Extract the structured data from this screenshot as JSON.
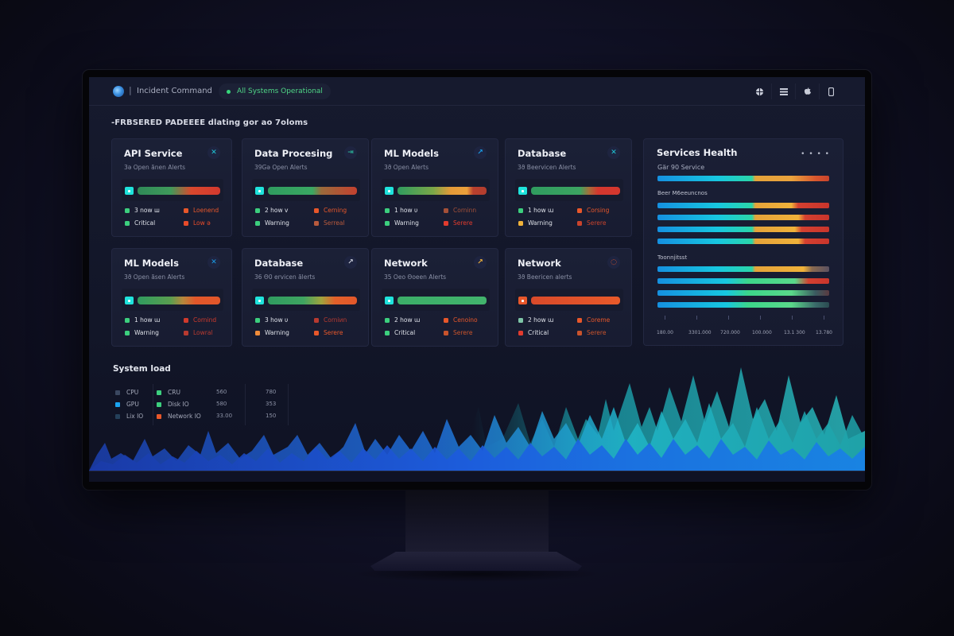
{
  "app": {
    "title": "Incident Command",
    "status": "All Systems Operational",
    "status_color": "#37d67a",
    "accent": "#1fe3dc"
  },
  "toolbar": {
    "icons": [
      "globe-icon",
      "menu-icon",
      "apple-icon",
      "phone-icon"
    ]
  },
  "subtitle": "-FRBSERED PADEEEE dlating gor ao 7oloms",
  "cards": [
    {
      "title": "API Service",
      "sub": "3ə Open ãnen Alerts",
      "icon": "✕",
      "icon_color": "#1fc9d8",
      "legend": [
        "3 now ш",
        "Critical",
        "Loenend",
        "Low ə"
      ],
      "colors": [
        "#3ccf7e",
        "#3ccf7e",
        "#e8572a",
        "#e84b2a"
      ],
      "bar": "linear-gradient(90deg,#2f8a58 0%,#3f9a5a 40%,#d9482d 65%,#d2392e 100%)"
    },
    {
      "title": "Data Procesing",
      "sub": "39Gə Open Alerts",
      "icon": "⇥",
      "icon_color": "#2aa58f",
      "legend": [
        "2 how v",
        "Warning",
        "Cerning",
        "Serreal"
      ],
      "colors": [
        "#3ccf7e",
        "#3ccf7e",
        "#e8572a",
        "#b85a3d"
      ],
      "bar": "linear-gradient(90deg,#2f9c5f 0%,#3aa862 50%,#9b6a3b 60%,#c3412f 100%)"
    },
    {
      "title": "ML Models",
      "sub": "3ϑ Open Alerts",
      "icon": "↗",
      "icon_color": "#1a9ee8",
      "legend": [
        "1 how υ",
        "Warning",
        "Corninn",
        "Serere"
      ],
      "colors": [
        "#3ccf7e",
        "#3ccf7e",
        "#a45038",
        "#e23b2e"
      ],
      "bar": "linear-gradient(90deg,#2f9c5f 0%,#7aa748 40%,#e59a38 60%,#eba03b 78%,#b8402e 85%,#b23d2e 100%)"
    },
    {
      "title": "Database",
      "sub": "3ϑ Beervicen Alerts",
      "icon": "✕",
      "icon_color": "#1fc9d8",
      "legend": [
        "1 how ɯ",
        "Warning",
        "Corsing",
        "Serere"
      ],
      "colors": [
        "#3ccf7e",
        "#f0b23a",
        "#e8572a",
        "#c9432c"
      ],
      "bar": "linear-gradient(90deg,#2f9c5f 0%,#3ca461 55%,#a4703a 65%,#d4372e 75%,#d4372e 100%)"
    },
    {
      "title": "ML Models",
      "sub": "3ϑ Open ãsen Alerts",
      "icon": "✕",
      "icon_color": "#1a9ee8",
      "legend": [
        "1 how ɯ",
        "Warning",
        "Cornind",
        "Lowral"
      ],
      "colors": [
        "#3ccf7e",
        "#3ccf7e",
        "#d13a2c",
        "#b83a30"
      ],
      "bar": "linear-gradient(90deg,#2f9c5f 0%,#5a9e4f 40%,#b7873c 55%,#e2572a 70%,#e2572a 100%)"
    },
    {
      "title": "Database",
      "sub": "36 Θ0 ervicen ãlerts",
      "icon": "↗",
      "icon_color": "#c8ccd8",
      "legend": [
        "3 how υ",
        "Warning",
        "Corniиn",
        "Serere"
      ],
      "colors": [
        "#3ccf7e",
        "#f08c3a",
        "#b83a30",
        "#e8572a"
      ],
      "bar": "linear-gradient(90deg,#2f9c5f 0%,#3fa561 40%,#a0a43d 60%,#e2612a 75%,#e2572a 100%)"
    },
    {
      "title": "Network",
      "sub": "35 Oeo Θoeen Alerts",
      "icon": "↗",
      "icon_color": "#f0b23a",
      "legend": [
        "2 how ɯ",
        "Critical",
        "Cenoino",
        "Serere"
      ],
      "colors": [
        "#3ccf7e",
        "#3ccf7e",
        "#e8572a",
        "#c9532c"
      ],
      "bar": "linear-gradient(90deg,#3cae68 0%,#42b46c 100%)"
    },
    {
      "title": "Network",
      "sub": "3ϑ Beericen alerts",
      "icon": "◌",
      "icon_color": "#e8572a",
      "legend": [
        "2 how ɯ",
        "Critical",
        "Coreme",
        "Serere"
      ],
      "colors": [
        "#7fc6a8",
        "#e23b2e",
        "#e8572a",
        "#c9532c"
      ],
      "bar": "linear-gradient(90deg,#d94a2a 0%,#e85a2a 100%)",
      "chip_color": "#e8572a"
    }
  ],
  "services_health": {
    "title": "Services Health",
    "more": "• • • •",
    "sections": [
      "Gär 90 Service",
      "Beer M6eeuncnos",
      "Toonnjitsst"
    ],
    "x_ticks": [
      "180.00",
      "3301.000",
      "720.000",
      "100.000",
      "13.1 300",
      "13.780"
    ]
  },
  "system_load": {
    "title": "System load",
    "legend_col1": [
      {
        "label": "CPU",
        "color": "#3a4760"
      },
      {
        "label": "GPU",
        "color": "#1aa3f0"
      },
      {
        "label": "Lix IO",
        "color": "#24405a"
      }
    ],
    "legend_col2": [
      {
        "label": "CRU",
        "color": "#3ccf7e"
      },
      {
        "label": "Disk IO",
        "color": "#3ccf7e"
      },
      {
        "label": "Network IO",
        "color": "#e8572a"
      }
    ],
    "values_col1": [
      "560",
      "580",
      "33.00"
    ],
    "values_col2": [
      "780",
      "353",
      "150"
    ]
  }
}
